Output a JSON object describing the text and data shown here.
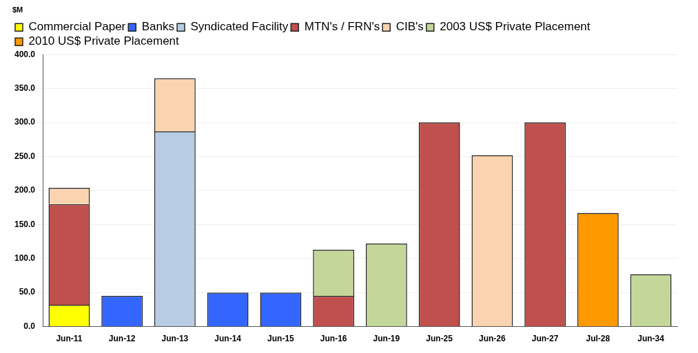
{
  "chart_data": {
    "type": "bar",
    "stacked": true,
    "ylabel": "$M",
    "categories": [
      "Jun-11",
      "Jun-12",
      "Jun-13",
      "Jun-14",
      "Jun-15",
      "Jun-16",
      "Jun-19",
      "Jun-25",
      "Jun-26",
      "Jun-27",
      "Jul-28",
      "Jun-34"
    ],
    "series": [
      {
        "name": "Commercial Paper",
        "color": "#ffff00",
        "values": [
          32,
          null,
          null,
          null,
          null,
          null,
          null,
          null,
          null,
          null,
          null,
          null
        ]
      },
      {
        "name": "Banks",
        "color": "#3366ff",
        "values": [
          null,
          45,
          null,
          50,
          50,
          null,
          null,
          null,
          null,
          null,
          null,
          null
        ]
      },
      {
        "name": "Syndicated Facility",
        "color": "#b8cce4",
        "values": [
          null,
          null,
          287,
          null,
          null,
          null,
          null,
          null,
          null,
          null,
          null,
          null
        ]
      },
      {
        "name": "MTN's / FRN's",
        "color": "#c0504d",
        "values": [
          148,
          null,
          null,
          null,
          null,
          45,
          null,
          300,
          null,
          300,
          null,
          null
        ]
      },
      {
        "name": "CIB's",
        "color": "#fad4b0",
        "values": [
          24,
          null,
          78,
          null,
          null,
          null,
          null,
          null,
          252,
          null,
          null,
          null
        ]
      },
      {
        "name": "2003 US$ Private Placement",
        "color": "#c4d79b",
        "values": [
          null,
          null,
          null,
          null,
          null,
          68,
          122,
          null,
          null,
          null,
          null,
          77
        ]
      },
      {
        "name": "2010 US$ Private Placement",
        "color": "#ff9900",
        "values": [
          null,
          null,
          null,
          null,
          null,
          null,
          null,
          null,
          null,
          null,
          167,
          null
        ]
      }
    ],
    "ylim": [
      0,
      400
    ],
    "yticks": [
      {
        "value": 0,
        "label": "0.0"
      },
      {
        "value": 50,
        "label": "50.0"
      },
      {
        "value": 100,
        "label": "100.0"
      },
      {
        "value": 150,
        "label": "150.0"
      },
      {
        "value": 200,
        "label": "200.0"
      },
      {
        "value": 250,
        "label": "250.0"
      },
      {
        "value": 300,
        "label": "300.0"
      },
      {
        "value": 350,
        "label": "350.0"
      },
      {
        "value": 400,
        "label": "400.0"
      }
    ],
    "grid": "y",
    "legend": "top"
  }
}
